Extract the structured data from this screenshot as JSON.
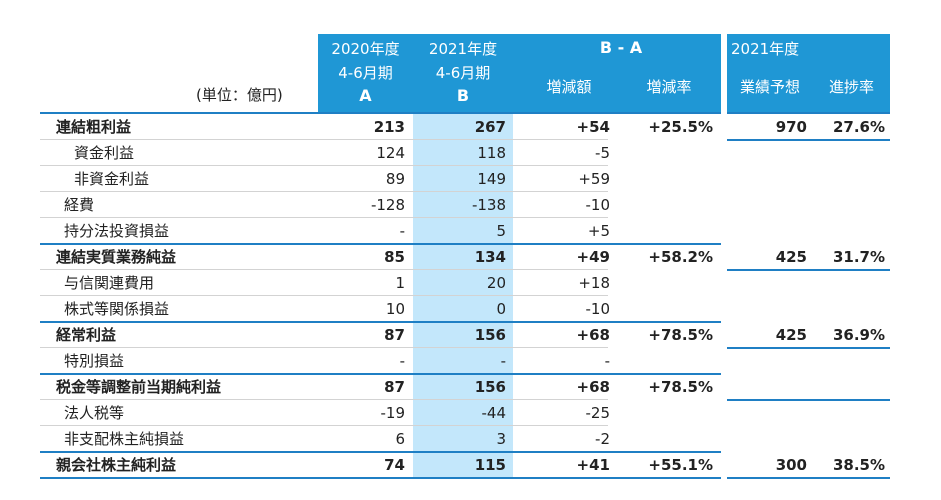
{
  "header": {
    "unit_label": "(単位：億円)",
    "col_a": {
      "line1": "2020年度",
      "line2": "4-6月期",
      "line3": "A"
    },
    "col_b": {
      "line1": "2021年度",
      "line2": "4-6月期",
      "line3": "B"
    },
    "diff_group": "B - A",
    "diff_amount": "増減額",
    "diff_rate": "増減率",
    "forecast_year": "2021年度",
    "forecast": "業績予想",
    "progress": "進捗率"
  },
  "rows": [
    {
      "label": "連結粗利益",
      "a": "213",
      "b": "267",
      "diff": "+54",
      "rate": "+25.5%",
      "forecast": "970",
      "progress": "27.6%",
      "bold": true,
      "indent": 0
    },
    {
      "label": "資金利益",
      "a": "124",
      "b": "118",
      "diff": "-5",
      "rate": "",
      "forecast": "",
      "progress": "",
      "bold": false,
      "indent": 2
    },
    {
      "label": "非資金利益",
      "a": "89",
      "b": "149",
      "diff": "+59",
      "rate": "",
      "forecast": "",
      "progress": "",
      "bold": false,
      "indent": 2
    },
    {
      "label": "経費",
      "a": "-128",
      "b": "-138",
      "diff": "-10",
      "rate": "",
      "forecast": "",
      "progress": "",
      "bold": false,
      "indent": 1
    },
    {
      "label": "持分法投資損益",
      "a": "-",
      "b": "5",
      "diff": "+5",
      "rate": "",
      "forecast": "",
      "progress": "",
      "bold": false,
      "indent": 1
    },
    {
      "label": "連結実質業務純益",
      "a": "85",
      "b": "134",
      "diff": "+49",
      "rate": "+58.2%",
      "forecast": "425",
      "progress": "31.7%",
      "bold": true,
      "indent": 0
    },
    {
      "label": "与信関連費用",
      "a": "1",
      "b": "20",
      "diff": "+18",
      "rate": "",
      "forecast": "",
      "progress": "",
      "bold": false,
      "indent": 1
    },
    {
      "label": "株式等関係損益",
      "a": "10",
      "b": "0",
      "diff": "-10",
      "rate": "",
      "forecast": "",
      "progress": "",
      "bold": false,
      "indent": 1
    },
    {
      "label": "経常利益",
      "a": "87",
      "b": "156",
      "diff": "+68",
      "rate": "+78.5%",
      "forecast": "425",
      "progress": "36.9%",
      "bold": true,
      "indent": 0
    },
    {
      "label": "特別損益",
      "a": "-",
      "b": "-",
      "diff": "-",
      "rate": "",
      "forecast": "",
      "progress": "",
      "bold": false,
      "indent": 1
    },
    {
      "label": "税金等調整前当期純利益",
      "a": "87",
      "b": "156",
      "diff": "+68",
      "rate": "+78.5%",
      "forecast": "",
      "progress": "",
      "bold": true,
      "indent": 0
    },
    {
      "label": "法人税等",
      "a": "-19",
      "b": "-44",
      "diff": "-25",
      "rate": "",
      "forecast": "",
      "progress": "",
      "bold": false,
      "indent": 1
    },
    {
      "label": "非支配株主純損益",
      "a": "6",
      "b": "3",
      "diff": "-2",
      "rate": "",
      "forecast": "",
      "progress": "",
      "bold": false,
      "indent": 1
    },
    {
      "label": "親会社株主純利益",
      "a": "74",
      "b": "115",
      "diff": "+41",
      "rate": "+55.1%",
      "forecast": "300",
      "progress": "38.5%",
      "bold": true,
      "indent": 0
    }
  ],
  "colors": {
    "header_blue": "#1f97d5",
    "highlight_column": "#c3e7fb",
    "rule_blue": "#1f7fc4"
  }
}
